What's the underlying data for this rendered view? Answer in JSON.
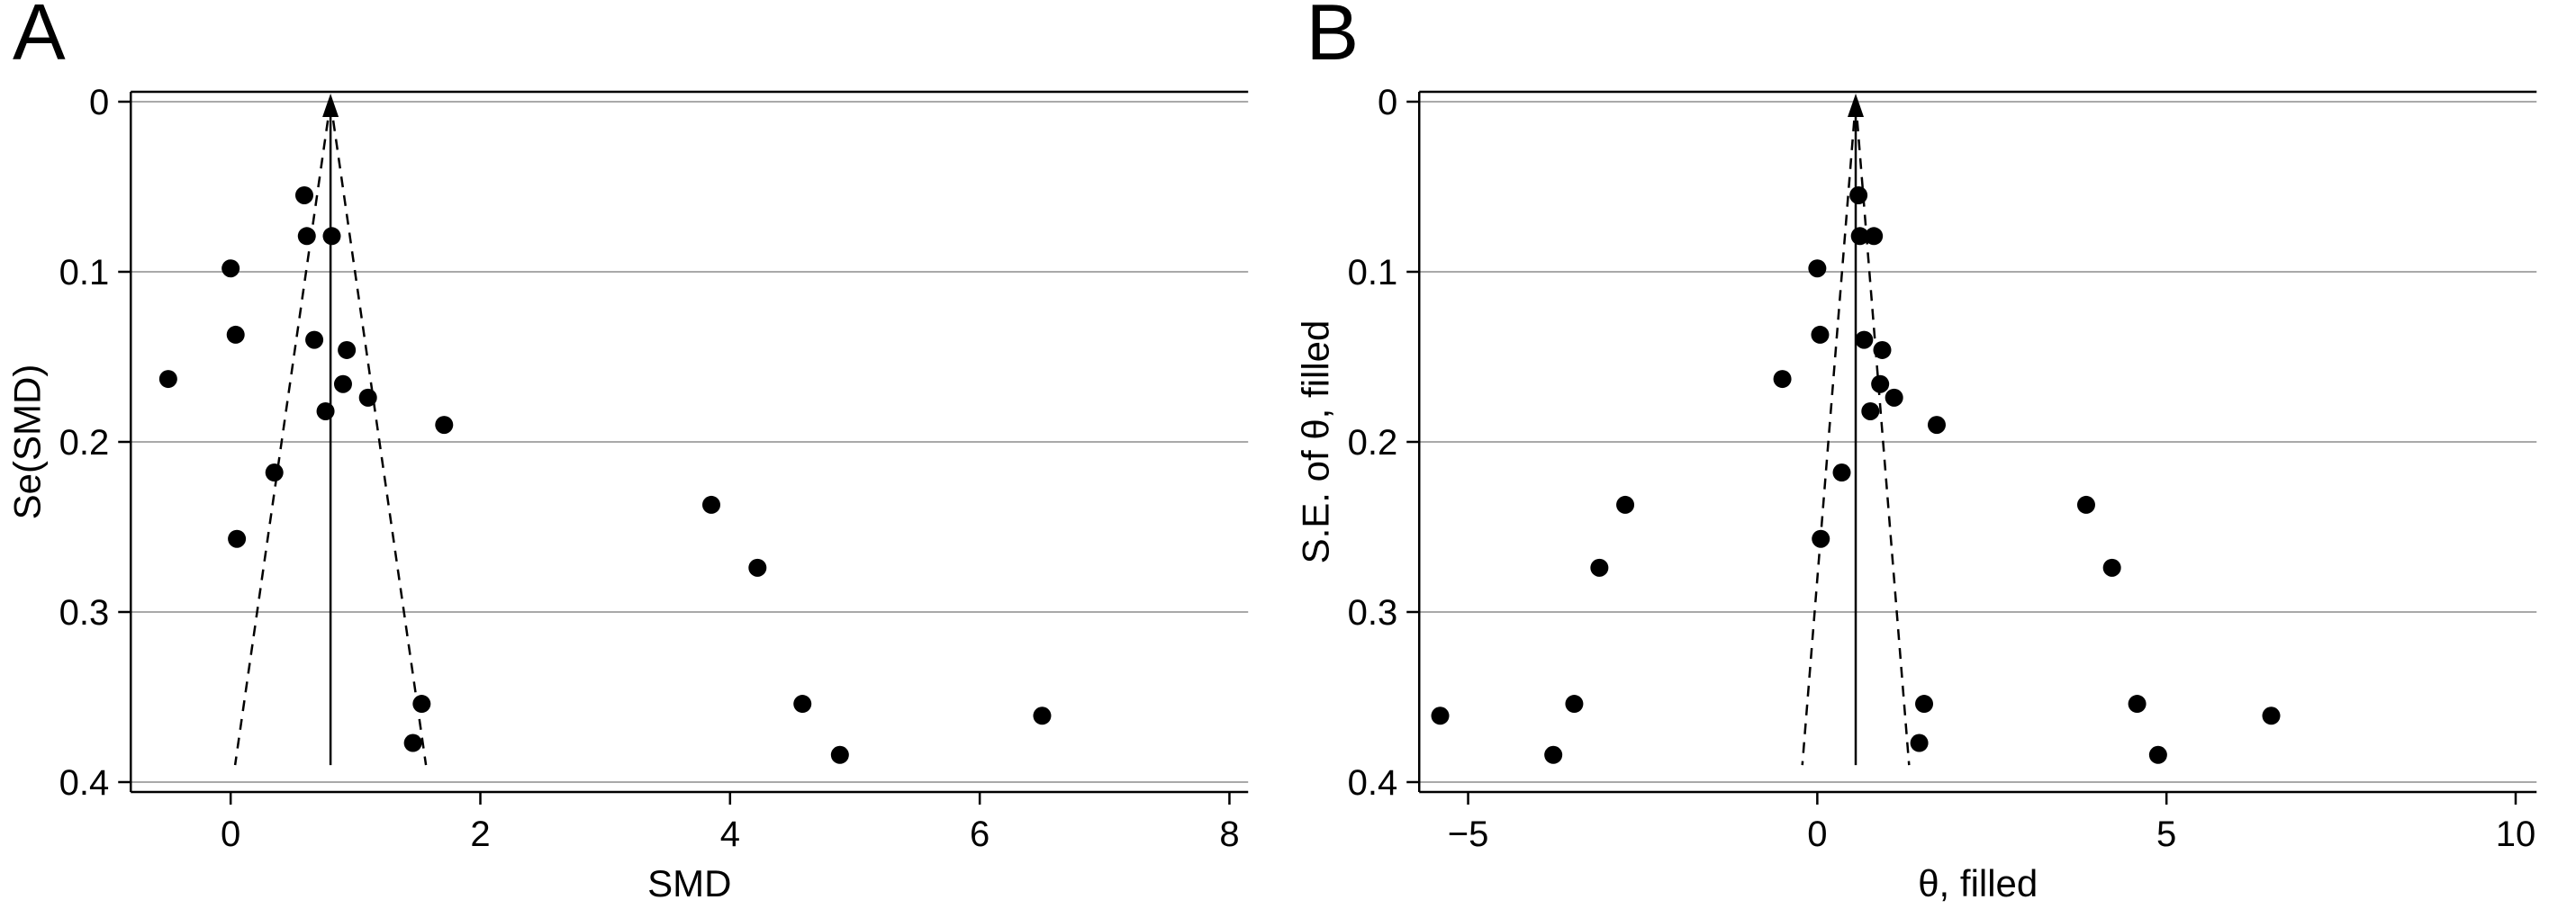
{
  "figure": {
    "background": "#ffffff",
    "description_panels": [
      "A",
      "B"
    ]
  },
  "chart_data": [
    {
      "type": "scatter",
      "panel_label": "A",
      "title": "",
      "xlabel": "SMD",
      "ylabel": "Se(SMD)",
      "xlim": [
        -0.8,
        8.15
      ],
      "ylim": [
        0,
        0.4
      ],
      "y_reversed": true,
      "grid": true,
      "xticks": [
        0,
        2,
        4,
        6,
        8
      ],
      "xtick_labels": [
        "0",
        "2",
        "4",
        "6",
        "8"
      ],
      "yticks": [
        0,
        0.1,
        0.2,
        0.3,
        0.4
      ],
      "ytick_labels": [
        "0",
        "0.1",
        "0.2",
        "0.3",
        "0.4"
      ],
      "funnel": {
        "center": 0.8,
        "slope": 1.96,
        "max_se": 0.39,
        "style": "dashed"
      },
      "pooled_estimate": 0.8,
      "points": [
        [
          -0.5,
          0.163
        ],
        [
          0.0,
          0.098
        ],
        [
          0.04,
          0.137
        ],
        [
          0.05,
          0.257
        ],
        [
          0.35,
          0.218
        ],
        [
          0.59,
          0.055
        ],
        [
          0.61,
          0.079
        ],
        [
          0.81,
          0.079
        ],
        [
          0.67,
          0.14
        ],
        [
          0.76,
          0.182
        ],
        [
          0.93,
          0.146
        ],
        [
          0.9,
          0.166
        ],
        [
          1.1,
          0.174
        ],
        [
          1.71,
          0.19
        ],
        [
          1.53,
          0.354
        ],
        [
          1.46,
          0.377
        ],
        [
          3.85,
          0.237
        ],
        [
          4.22,
          0.274
        ],
        [
          4.58,
          0.354
        ],
        [
          4.88,
          0.384
        ],
        [
          6.5,
          0.361
        ]
      ],
      "filled_points": [],
      "colors": {
        "point": "#000000",
        "grid": "#a9a9a9",
        "axis": "#000000",
        "funnel": "#000000"
      }
    },
    {
      "type": "scatter",
      "panel_label": "B",
      "title": "",
      "xlabel": "θ, filled",
      "ylabel": "S.E. of θ, filled",
      "xlim": [
        -5.7,
        10.3
      ],
      "ylim": [
        0,
        0.4
      ],
      "y_reversed": true,
      "grid": true,
      "xticks": [
        -5,
        0,
        5,
        10
      ],
      "xtick_labels": [
        "−5",
        "0",
        "5",
        "10"
      ],
      "yticks": [
        0,
        0.1,
        0.2,
        0.3,
        0.4
      ],
      "ytick_labels": [
        "0",
        "0.1",
        "0.2",
        "0.3",
        "0.4"
      ],
      "funnel": {
        "center": 0.55,
        "slope": 1.96,
        "max_se": 0.39,
        "style": "dashed"
      },
      "pooled_estimate": 0.55,
      "points": [
        [
          -0.5,
          0.163
        ],
        [
          0.0,
          0.098
        ],
        [
          0.04,
          0.137
        ],
        [
          0.05,
          0.257
        ],
        [
          0.35,
          0.218
        ],
        [
          0.59,
          0.055
        ],
        [
          0.61,
          0.079
        ],
        [
          0.81,
          0.079
        ],
        [
          0.67,
          0.14
        ],
        [
          0.76,
          0.182
        ],
        [
          0.93,
          0.146
        ],
        [
          0.9,
          0.166
        ],
        [
          1.1,
          0.174
        ],
        [
          1.71,
          0.19
        ],
        [
          1.53,
          0.354
        ],
        [
          1.46,
          0.377
        ],
        [
          3.85,
          0.237
        ],
        [
          4.22,
          0.274
        ],
        [
          4.58,
          0.354
        ],
        [
          4.88,
          0.384
        ],
        [
          6.5,
          0.361
        ]
      ],
      "filled_points": [
        [
          -2.75,
          0.237
        ],
        [
          -3.12,
          0.274
        ],
        [
          -3.48,
          0.354
        ],
        [
          -3.78,
          0.384
        ],
        [
          -5.4,
          0.361
        ]
      ],
      "colors": {
        "point": "#000000",
        "grid": "#a9a9a9",
        "axis": "#000000",
        "funnel": "#000000"
      }
    }
  ]
}
